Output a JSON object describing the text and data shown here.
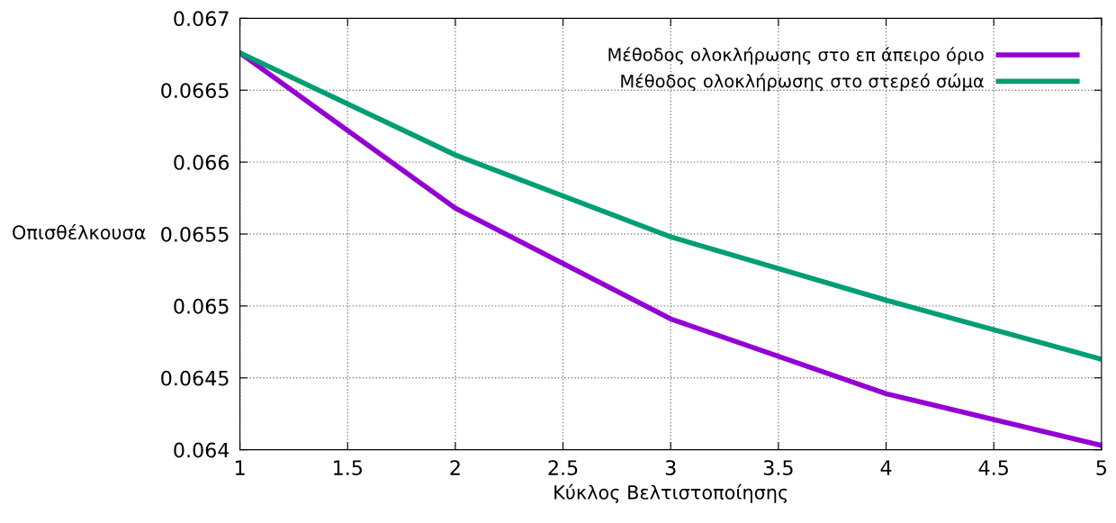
{
  "chart_data": {
    "type": "line",
    "xlabel": "Κύκλος Βελτιστοποίησης",
    "ylabel": "Οπισθέλκουσα",
    "x": [
      1,
      2,
      3,
      4,
      5
    ],
    "series": [
      {
        "name": "Μέθοδος ολοκλήρωσης στο επ άπειρο όριο",
        "color": "#9400d3",
        "values": [
          0.06676,
          0.06568,
          0.06491,
          0.06439,
          0.06403
        ]
      },
      {
        "name": "Μέθοδος ολοκλήρωσης στο στερεό σώμα",
        "color": "#009e73",
        "values": [
          0.06676,
          0.06605,
          0.06548,
          0.06504,
          0.06463
        ]
      }
    ],
    "xlim": [
      1,
      5
    ],
    "xticks": [
      1,
      1.5,
      2,
      2.5,
      3,
      3.5,
      4,
      4.5,
      5
    ],
    "ylim": [
      0.064,
      0.067
    ],
    "yticks": [
      0.064,
      0.0645,
      0.065,
      0.0655,
      0.066,
      0.0665,
      0.067
    ],
    "grid": true,
    "legend": "top right",
    "marker": "none",
    "line_style": "solid"
  }
}
